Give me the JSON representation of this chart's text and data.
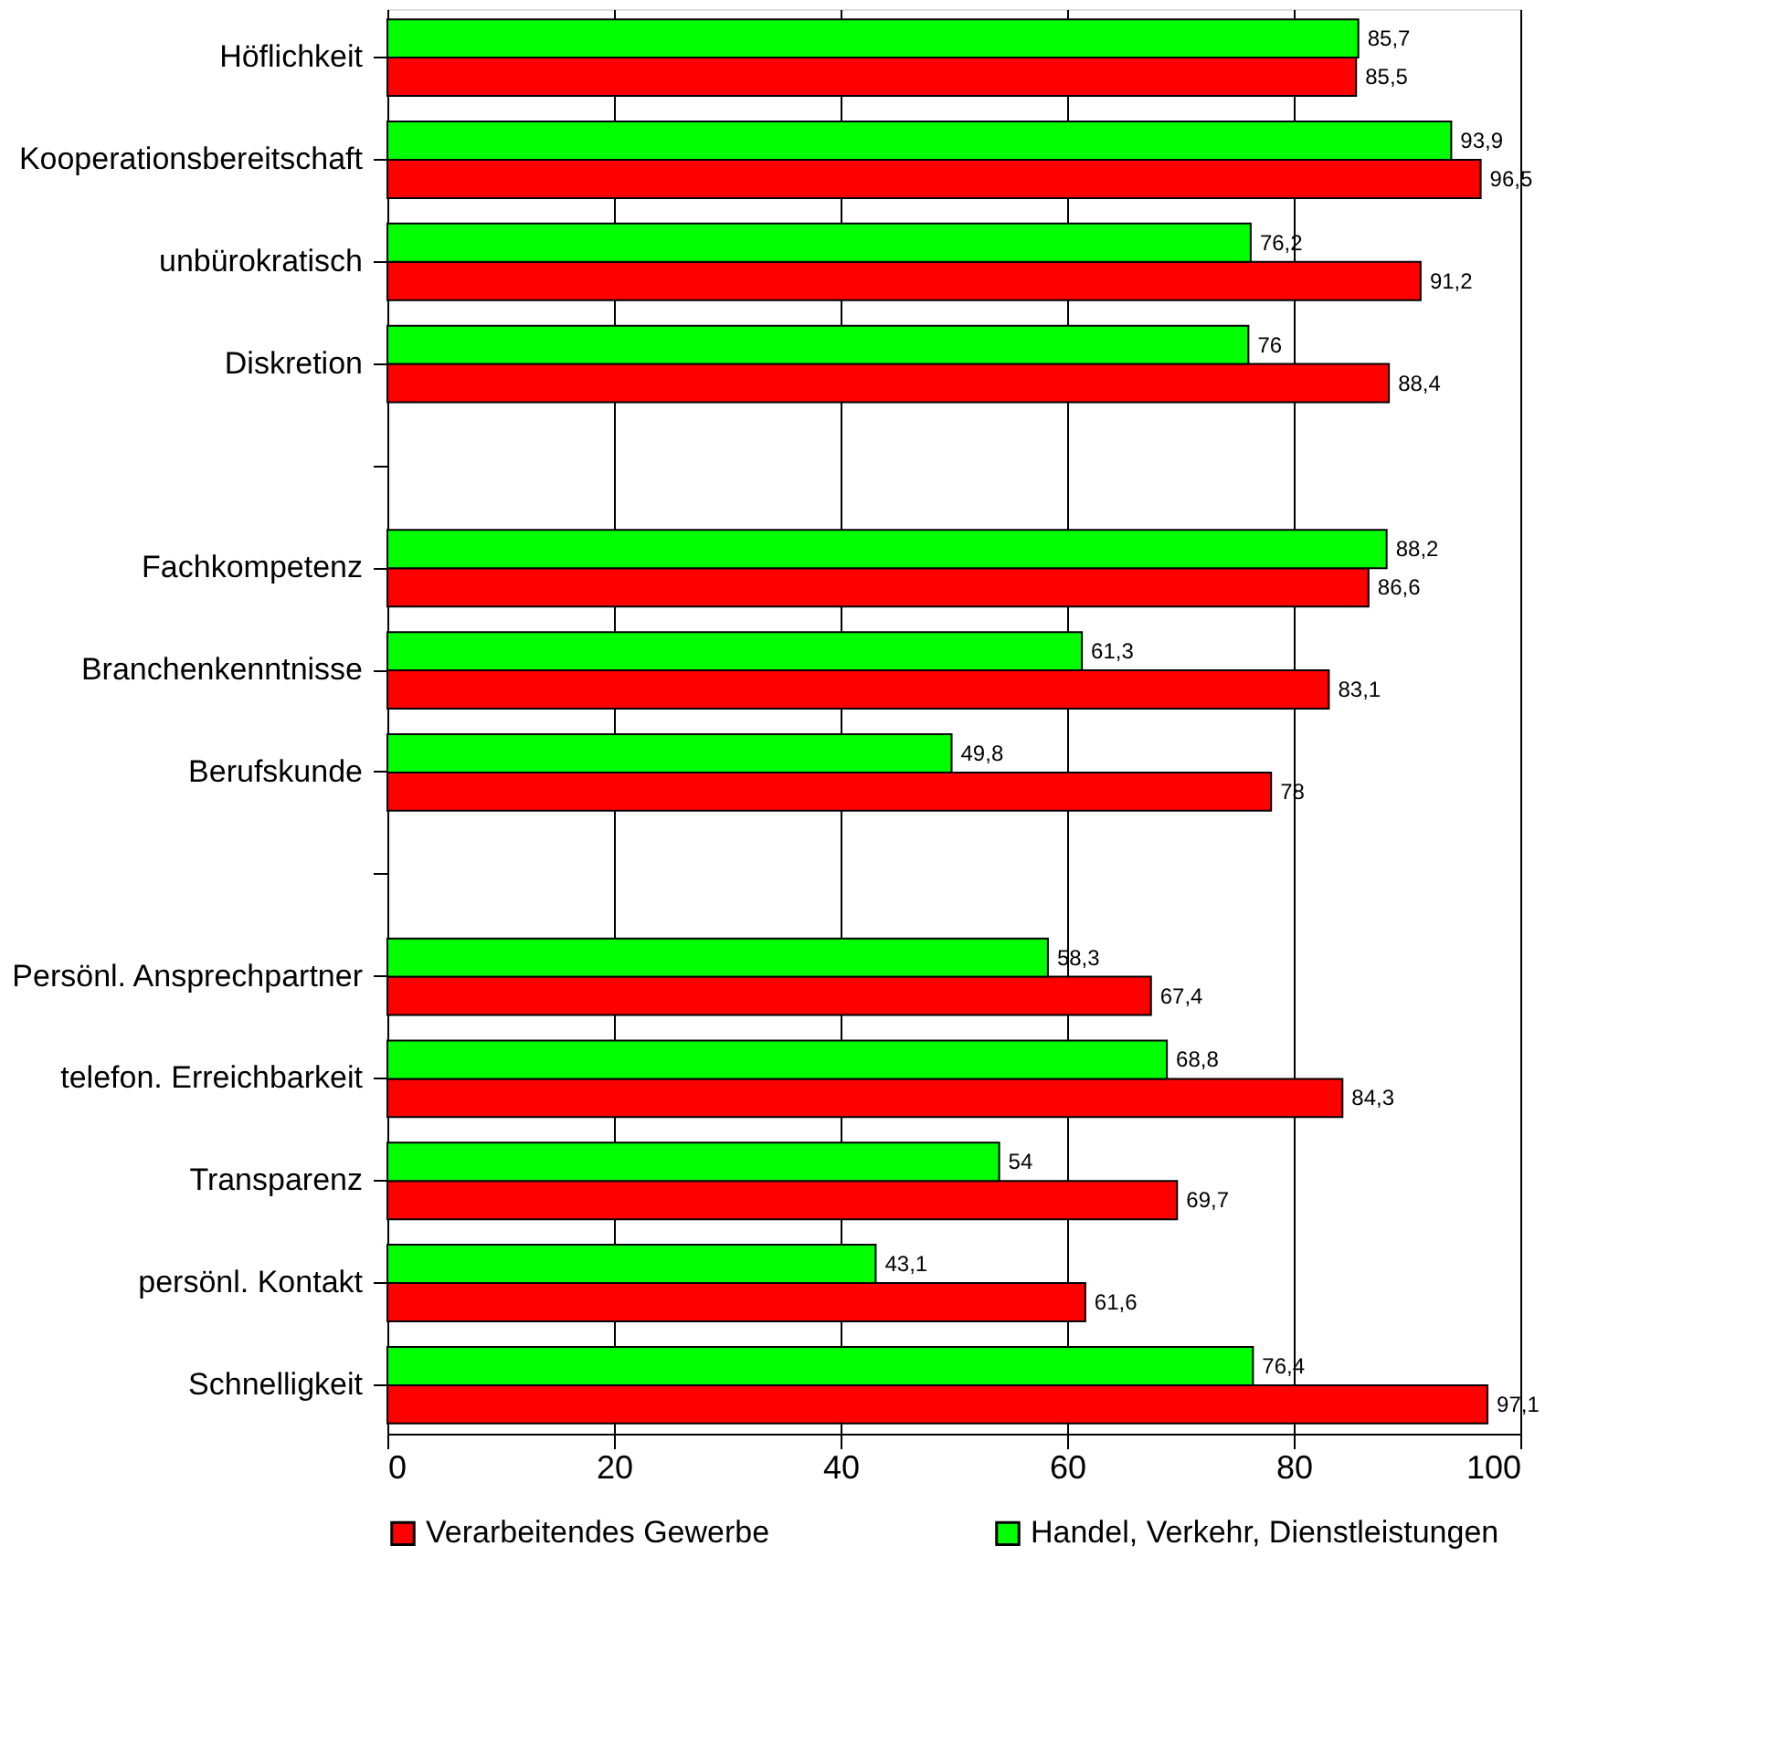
{
  "chart_data": {
    "type": "bar",
    "orientation": "horizontal",
    "categories": [
      "Höflichkeit",
      "Kooperationsbereitschaft",
      "unbürokratisch",
      "Diskretion",
      null,
      "Fachkompetenz",
      "Branchenkenntnisse",
      "Berufskunde",
      null,
      "Persönl. Ansprechpartner",
      "telefon. Erreichbarkeit",
      "Transparenz",
      "persönl. Kontakt",
      "Schnelligkeit"
    ],
    "series": [
      {
        "name": "Verarbeitendes Gewerbe",
        "color": "#ff0000",
        "values": [
          85.5,
          96.5,
          91.2,
          88.4,
          null,
          86.6,
          83.1,
          78,
          null,
          67.4,
          84.3,
          69.7,
          61.6,
          97.1
        ],
        "value_labels": [
          "85,5",
          "96,5",
          "91,2",
          "88,4",
          null,
          "86,6",
          "83,1",
          "78",
          null,
          "67,4",
          "84,3",
          "69,7",
          "61,6",
          "97,1"
        ]
      },
      {
        "name": "Handel, Verkehr, Dienstleistungen",
        "color": "#00ff00",
        "values": [
          85.7,
          93.9,
          76.2,
          76,
          null,
          88.2,
          61.3,
          49.8,
          null,
          58.3,
          68.8,
          54,
          43.1,
          76.4
        ],
        "value_labels": [
          "85,7",
          "93,9",
          "76,2",
          "76",
          null,
          "88,2",
          "61,3",
          "49,8",
          null,
          "58,3",
          "68,8",
          "54",
          "43,1",
          "76,4"
        ]
      }
    ],
    "xlim": [
      0,
      100
    ],
    "xticks": [
      0,
      20,
      40,
      60,
      80,
      100
    ],
    "grid": "x",
    "legend": "bottom"
  }
}
